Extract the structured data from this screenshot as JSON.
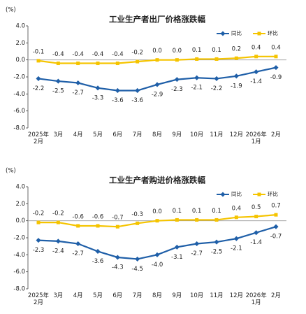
{
  "chart_data": [
    {
      "type": "line",
      "title": "工业生产者出厂价格涨跌幅",
      "y_label": "(%)",
      "categories": [
        "2025年\n2月",
        "3月",
        "4月",
        "5月",
        "6月",
        "7月",
        "8月",
        "9月",
        "10月",
        "11月",
        "12月",
        "2026年\n1月",
        "2月"
      ],
      "series": [
        {
          "name": "同比",
          "color": "#1f5fa8",
          "values": [
            -2.2,
            -2.5,
            -2.7,
            -3.3,
            -3.6,
            -3.6,
            -2.9,
            -2.3,
            -2.1,
            -2.2,
            -1.9,
            -1.4,
            -0.9
          ],
          "value_labels": [
            "-2.2",
            "-2.5",
            "-2.7",
            "-3.3",
            "-3.6",
            "-3.6",
            "-2.9",
            "-2.3",
            "-2.1",
            "-2.2",
            "-1.9",
            "-1.4",
            "-0.9"
          ]
        },
        {
          "name": "环比",
          "color": "#f5c400",
          "values": [
            -0.1,
            -0.4,
            -0.4,
            -0.4,
            -0.4,
            -0.2,
            0.0,
            0.0,
            0.1,
            0.1,
            0.2,
            0.4,
            0.4
          ],
          "value_labels": [
            "-0.1",
            "-0.4",
            "-0.4",
            "-0.4",
            "-0.4",
            "-0.2",
            "0.0",
            "0.0",
            "0.1",
            "0.1",
            "0.2",
            "0.4",
            "0.4"
          ]
        }
      ],
      "ylim": [
        -8,
        4
      ],
      "yticks": [
        {
          "value": 4,
          "label": "4.0"
        },
        {
          "value": 2,
          "label": "2.0"
        },
        {
          "value": 0,
          "label": "0.0"
        },
        {
          "value": -2,
          "label": "-2.0"
        },
        {
          "value": -4,
          "label": "-4.0"
        },
        {
          "value": -6,
          "label": "-6.0"
        },
        {
          "value": -8,
          "label": "-8.0"
        }
      ],
      "legend": "upper right"
    },
    {
      "type": "line",
      "title": "工业生产者购进价格涨跌幅",
      "y_label": "(%)",
      "categories": [
        "2025年\n2月",
        "3月",
        "4月",
        "5月",
        "6月",
        "7月",
        "8月",
        "9月",
        "10月",
        "11月",
        "12月",
        "2026年\n1月",
        "2月"
      ],
      "series": [
        {
          "name": "同比",
          "color": "#1f5fa8",
          "values": [
            -2.3,
            -2.4,
            -2.7,
            -3.6,
            -4.3,
            -4.5,
            -4.0,
            -3.1,
            -2.7,
            -2.5,
            -2.1,
            -1.4,
            -0.7
          ],
          "value_labels": [
            "-2.3",
            "-2.4",
            "-2.7",
            "-3.6",
            "-4.3",
            "-4.5",
            "-4.0",
            "-3.1",
            "-2.7",
            "-2.5",
            "-2.1",
            "-1.4",
            "-0.7"
          ]
        },
        {
          "name": "环比",
          "color": "#f5c400",
          "values": [
            -0.2,
            -0.2,
            -0.6,
            -0.6,
            -0.7,
            -0.3,
            0.0,
            0.1,
            0.1,
            0.1,
            0.4,
            0.5,
            0.7
          ],
          "value_labels": [
            "-0.2",
            "-0.2",
            "-0.6",
            "-0.6",
            "-0.7",
            "-0.3",
            "0.0",
            "0.1",
            "0.1",
            "0.1",
            "0.4",
            "0.5",
            "0.7"
          ]
        }
      ],
      "ylim": [
        -8,
        4
      ],
      "yticks": [
        {
          "value": 4,
          "label": "4.0"
        },
        {
          "value": 2,
          "label": "2.0"
        },
        {
          "value": 0,
          "label": "0.0"
        },
        {
          "value": -2,
          "label": "-2.0"
        },
        {
          "value": -4,
          "label": "-4.0"
        },
        {
          "value": -6,
          "label": "-6.0"
        },
        {
          "value": -8,
          "label": "-8.0"
        }
      ],
      "legend": "upper right"
    }
  ]
}
